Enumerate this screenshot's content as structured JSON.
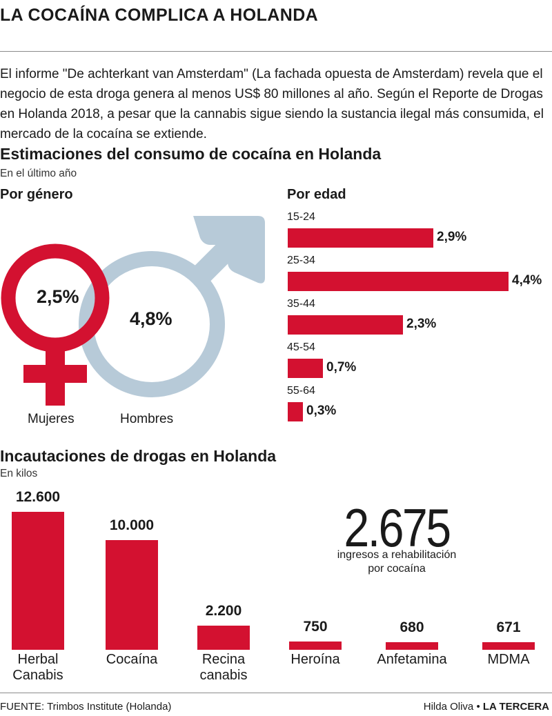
{
  "headline": "LA COCAÍNA COMPLICA A HOLANDA",
  "intro": "El informe \"De achterkant van Amsterdam\" (La fachada opuesta de Amsterdam) revela que el negocio de esta droga genera al menos US$ 80 millones al año. Según el Reporte de Drogas en Holanda 2018, a pesar que la cannabis sigue siendo la sustancia ilegal más consumida, el mercado de la cocaína se extiende.",
  "colors": {
    "accent": "#d31130",
    "male_symbol": "#b7cad8",
    "rule": "#8a8a8a"
  },
  "consumption": {
    "title": "Estimaciones del consumo de cocaína en Holanda",
    "subtitle": "En el último año",
    "gender": {
      "title": "Por género",
      "women": {
        "label": "Mujeres",
        "value_label": "2,5%",
        "value": 2.5,
        "icon": "female-symbol-icon"
      },
      "men": {
        "label": "Hombres",
        "value_label": "4,8%",
        "value": 4.8,
        "icon": "male-symbol-icon"
      }
    },
    "age": {
      "title": "Por edad"
    }
  },
  "seizures": {
    "title": "Incautaciones de drogas en Holanda",
    "subtitle": "En kilos"
  },
  "rehab": {
    "number": "2.675",
    "caption": "ingresos a rehabilitación\npor cocaína"
  },
  "footer": {
    "source": "FUENTE: Trimbos Institute (Holanda)",
    "author": "Hilda Oliva",
    "separator": "•",
    "outlet": "LA TERCERA"
  },
  "chart_data": [
    {
      "type": "bar",
      "orientation": "horizontal",
      "title": "Por edad",
      "categories": [
        "15-24",
        "25-34",
        "35-44",
        "45-54",
        "55-64"
      ],
      "values": [
        2.9,
        4.4,
        2.3,
        0.7,
        0.3
      ],
      "value_labels": [
        "2,9%",
        "4,4%",
        "2,3%",
        "0,7%",
        "0,3%"
      ],
      "unit": "%"
    },
    {
      "type": "bar",
      "title": "Incautaciones de drogas en Holanda",
      "ylabel": "En kilos",
      "categories": [
        "Herbal\nCanabis",
        "Cocaína",
        "Recina\ncanabis",
        "Heroína",
        "Anfetamina",
        "MDMA"
      ],
      "values": [
        12600,
        10000,
        2200,
        750,
        680,
        671
      ],
      "value_labels": [
        "12.600",
        "10.000",
        "2.200",
        "750",
        "680",
        "671"
      ]
    }
  ]
}
